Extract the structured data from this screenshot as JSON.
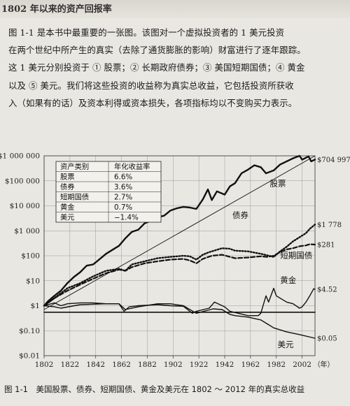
{
  "header_fragment": "1802 年以来的资产回报率",
  "intro_lines": [
    "图 1-1 是本书中最重要的一张图。该图对一个虚拟投资者的 1 美元投资",
    "在两个世纪中所产生的真实（去除了通货膨胀的影响）财富进行了逐年跟踪。",
    "这 1 美元分别投资于 ① 股票；② 长期政府债券；③ 美国短期国债；④ 黄金",
    "以及 ⑤ 美元。我们将这些投资的收益称为真实总收益，它包括投资所获收",
    "入（如果有的话）及资本利得或资本损失，各项指标均以不变购买力表示。"
  ],
  "caption": "图 1-1　美国股票、债券、短期国债、黄金及美元在 1802 ～ 2012 年的真实总收益",
  "chart_data": {
    "type": "line",
    "y_scale": "log",
    "ylim": [
      0.01,
      1000000
    ],
    "xlim": [
      1802,
      2012
    ],
    "yticks": [
      {
        "v": 1000000,
        "label": "$1 000 000"
      },
      {
        "v": 100000,
        "label": "$100 000"
      },
      {
        "v": 10000,
        "label": "$10 000"
      },
      {
        "v": 1000,
        "label": "$1 000"
      },
      {
        "v": 100,
        "label": "$100"
      },
      {
        "v": 10,
        "label": "$10"
      },
      {
        "v": 1,
        "label": "$1"
      },
      {
        "v": 0.1,
        "label": "$0.10"
      },
      {
        "v": 0.01,
        "label": "$0.01"
      }
    ],
    "xticks": [
      1802,
      1822,
      1842,
      1862,
      1882,
      1902,
      1922,
      1942,
      1962,
      1982,
      2002
    ],
    "x_unit": "（年）",
    "table": {
      "headers": [
        "资产类别",
        "年化收益率"
      ],
      "rows": [
        [
          "股票",
          "6.6%"
        ],
        [
          "债券",
          "3.6%"
        ],
        [
          "短期国债",
          "2.7%"
        ],
        [
          "黄金",
          "0.7%"
        ],
        [
          "美元",
          "−1.4%"
        ]
      ]
    },
    "series": [
      {
        "name": "股票",
        "end_label": "$704 997",
        "style": "solid-thick",
        "points": [
          [
            1802,
            1
          ],
          [
            1805,
            1.5
          ],
          [
            1810,
            2.5
          ],
          [
            1815,
            4
          ],
          [
            1820,
            8
          ],
          [
            1825,
            14
          ],
          [
            1830,
            22
          ],
          [
            1835,
            40
          ],
          [
            1840,
            45
          ],
          [
            1843,
            60
          ],
          [
            1850,
            120
          ],
          [
            1857,
            200
          ],
          [
            1860,
            250
          ],
          [
            1865,
            500
          ],
          [
            1870,
            900
          ],
          [
            1875,
            1100
          ],
          [
            1880,
            2000
          ],
          [
            1885,
            2500
          ],
          [
            1890,
            3500
          ],
          [
            1895,
            4000
          ],
          [
            1900,
            6500
          ],
          [
            1905,
            8000
          ],
          [
            1910,
            9000
          ],
          [
            1915,
            8500
          ],
          [
            1920,
            7500
          ],
          [
            1925,
            18000
          ],
          [
            1929,
            45000
          ],
          [
            1932,
            17000
          ],
          [
            1936,
            38000
          ],
          [
            1942,
            28000
          ],
          [
            1946,
            60000
          ],
          [
            1950,
            80000
          ],
          [
            1955,
            200000
          ],
          [
            1960,
            280000
          ],
          [
            1965,
            420000
          ],
          [
            1970,
            350000
          ],
          [
            1974,
            200000
          ],
          [
            1980,
            260000
          ],
          [
            1985,
            450000
          ],
          [
            1990,
            600000
          ],
          [
            1995,
            800000
          ],
          [
            2000,
            1000000
          ],
          [
            2002,
            700000
          ],
          [
            2007,
            950000
          ],
          [
            2009,
            600000
          ],
          [
            2012,
            704997
          ]
        ]
      },
      {
        "name": "股票趋势线",
        "style": "solid-thin",
        "points": [
          [
            1802,
            0.7
          ],
          [
            2012,
            1000000
          ]
        ]
      },
      {
        "name": "债券",
        "end_label": "$1 778",
        "style": "dotted",
        "points": [
          [
            1802,
            1
          ],
          [
            1810,
            2
          ],
          [
            1820,
            5
          ],
          [
            1830,
            8
          ],
          [
            1840,
            15
          ],
          [
            1850,
            25
          ],
          [
            1860,
            30
          ],
          [
            1865,
            25
          ],
          [
            1870,
            45
          ],
          [
            1880,
            60
          ],
          [
            1890,
            80
          ],
          [
            1900,
            90
          ],
          [
            1910,
            100
          ],
          [
            1915,
            95
          ],
          [
            1920,
            70
          ],
          [
            1925,
            110
          ],
          [
            1930,
            140
          ],
          [
            1940,
            200
          ],
          [
            1946,
            190
          ],
          [
            1950,
            160
          ],
          [
            1960,
            150
          ],
          [
            1970,
            120
          ],
          [
            1980,
            90
          ],
          [
            1985,
            150
          ],
          [
            1990,
            230
          ],
          [
            1995,
            380
          ],
          [
            2000,
            550
          ],
          [
            2005,
            800
          ],
          [
            2008,
            1200
          ],
          [
            2012,
            1778
          ]
        ]
      },
      {
        "name": "短期国债",
        "end_label": "$281",
        "style": "dashed",
        "points": [
          [
            1802,
            1
          ],
          [
            1810,
            2
          ],
          [
            1820,
            4
          ],
          [
            1830,
            7
          ],
          [
            1840,
            12
          ],
          [
            1850,
            20
          ],
          [
            1860,
            28
          ],
          [
            1865,
            25
          ],
          [
            1870,
            35
          ],
          [
            1880,
            50
          ],
          [
            1890,
            60
          ],
          [
            1900,
            70
          ],
          [
            1910,
            75
          ],
          [
            1915,
            65
          ],
          [
            1920,
            50
          ],
          [
            1925,
            75
          ],
          [
            1932,
            100
          ],
          [
            1940,
            110
          ],
          [
            1946,
            90
          ],
          [
            1950,
            80
          ],
          [
            1960,
            85
          ],
          [
            1970,
            95
          ],
          [
            1975,
            90
          ],
          [
            1980,
            100
          ],
          [
            1985,
            140
          ],
          [
            1990,
            180
          ],
          [
            1995,
            200
          ],
          [
            2000,
            240
          ],
          [
            2005,
            260
          ],
          [
            2008,
            290
          ],
          [
            2012,
            281
          ]
        ]
      },
      {
        "name": "黄金",
        "end_label": "$4.52",
        "style": "solid",
        "points": [
          [
            1802,
            1
          ],
          [
            1810,
            1.3
          ],
          [
            1815,
            1
          ],
          [
            1820,
            1.2
          ],
          [
            1830,
            1.3
          ],
          [
            1840,
            1.3
          ],
          [
            1850,
            1.2
          ],
          [
            1860,
            1.2
          ],
          [
            1864,
            0.6
          ],
          [
            1868,
            0.9
          ],
          [
            1875,
            1
          ],
          [
            1890,
            1.1
          ],
          [
            1900,
            1
          ],
          [
            1910,
            0.95
          ],
          [
            1917,
            0.5
          ],
          [
            1920,
            0.6
          ],
          [
            1930,
            0.8
          ],
          [
            1934,
            1.4
          ],
          [
            1942,
            0.9
          ],
          [
            1946,
            0.6
          ],
          [
            1960,
            0.4
          ],
          [
            1968,
            0.4
          ],
          [
            1970,
            0.5
          ],
          [
            1974,
            2.5
          ],
          [
            1976,
            1.4
          ],
          [
            1980,
            5
          ],
          [
            1982,
            2.5
          ],
          [
            1985,
            2
          ],
          [
            1990,
            1.4
          ],
          [
            1995,
            1.2
          ],
          [
            2000,
            0.8
          ],
          [
            2002,
            0.9
          ],
          [
            2005,
            1.4
          ],
          [
            2008,
            2.5
          ],
          [
            2011,
            4.8
          ],
          [
            2012,
            4.52
          ]
        ]
      },
      {
        "name": "美元",
        "end_label": "$0.05",
        "style": "solid",
        "points": [
          [
            1802,
            1
          ],
          [
            1810,
            0.9
          ],
          [
            1815,
            0.8
          ],
          [
            1830,
            1.1
          ],
          [
            1850,
            1.2
          ],
          [
            1860,
            1.2
          ],
          [
            1865,
            0.7
          ],
          [
            1875,
            0.9
          ],
          [
            1890,
            1.2
          ],
          [
            1900,
            1.2
          ],
          [
            1910,
            1
          ],
          [
            1920,
            0.5
          ],
          [
            1933,
            0.75
          ],
          [
            1940,
            0.7
          ],
          [
            1946,
            0.45
          ],
          [
            1950,
            0.4
          ],
          [
            1960,
            0.35
          ],
          [
            1970,
            0.27
          ],
          [
            1980,
            0.13
          ],
          [
            1990,
            0.09
          ],
          [
            2000,
            0.07
          ],
          [
            2012,
            0.05
          ]
        ]
      },
      {
        "name": "基准线",
        "style": "flat",
        "points": [
          [
            1802,
            0.55
          ],
          [
            2012,
            0.55
          ]
        ]
      }
    ]
  }
}
